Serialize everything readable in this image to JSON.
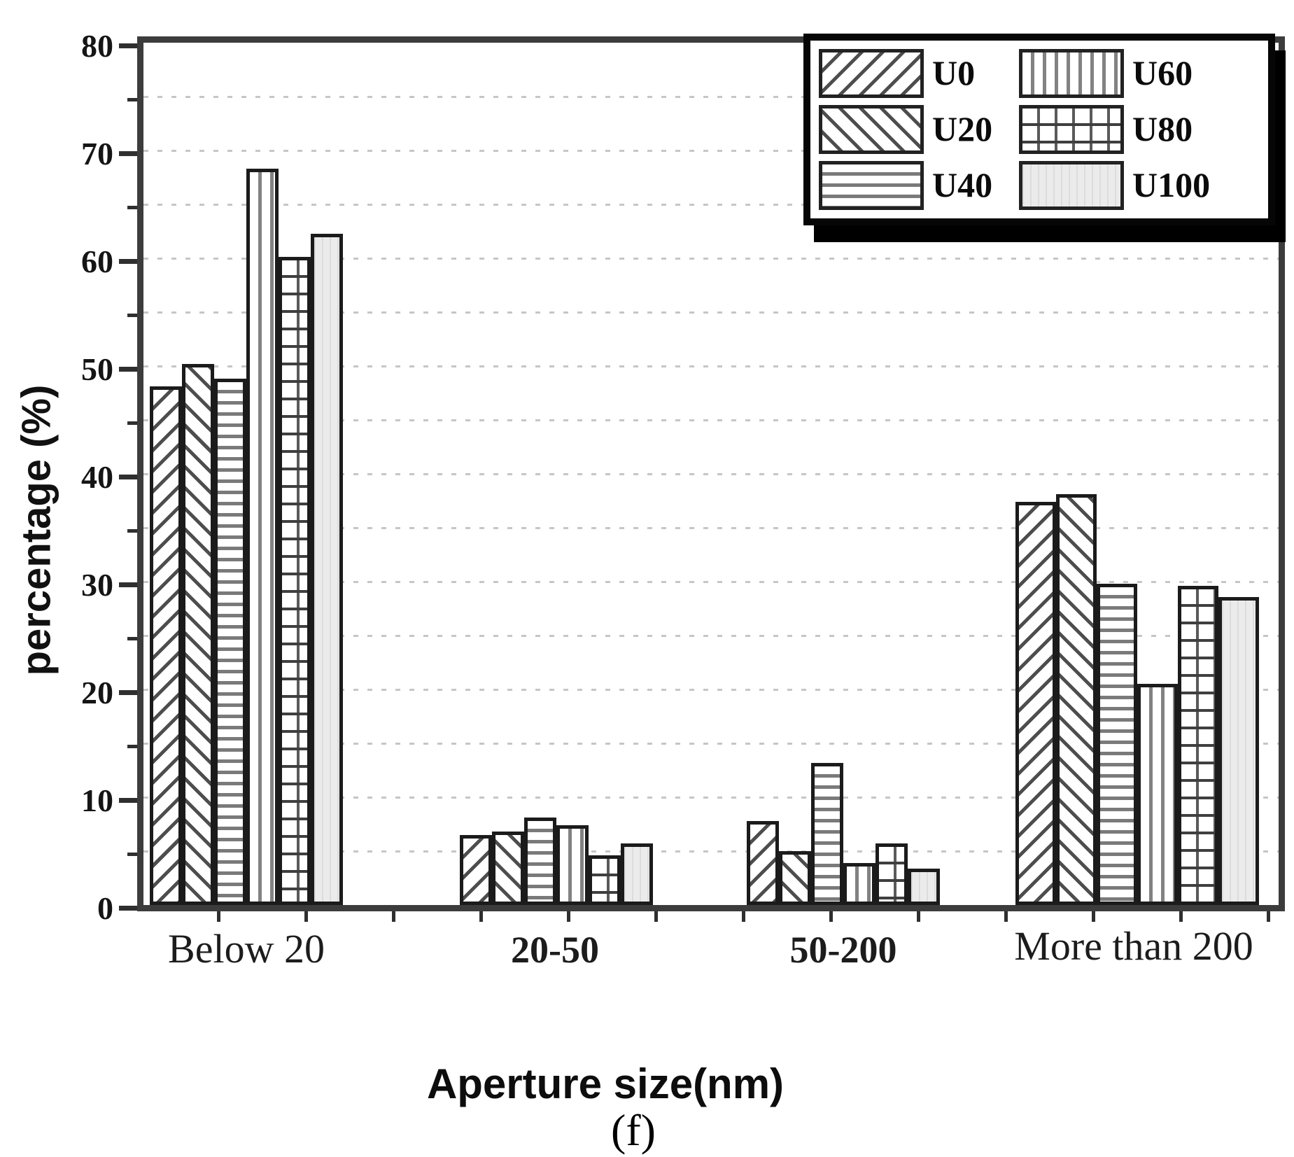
{
  "figure": {
    "caption": "(f)"
  },
  "chart_data": {
    "type": "bar",
    "title": "",
    "xlabel": "Aperture size(nm)",
    "ylabel": "percentage (%)",
    "ylim": [
      0,
      80
    ],
    "ytick_step": 10,
    "ytick_labels": [
      "0",
      "10",
      "20",
      "30",
      "40",
      "50",
      "60",
      "70",
      "80"
    ],
    "grid": true,
    "grid_step": 5,
    "legend_position": "top-right",
    "categories": [
      "Below 20",
      "20-50",
      "50-200",
      "More than 200"
    ],
    "series": [
      {
        "name": "U0",
        "pattern": "diag-up",
        "values": [
          48.1,
          6.5,
          7.8,
          37.4
        ]
      },
      {
        "name": "U20",
        "pattern": "diag-down",
        "values": [
          50.2,
          6.8,
          5.0,
          38.1
        ]
      },
      {
        "name": "U40",
        "pattern": "horizontal",
        "values": [
          48.8,
          8.1,
          13.2,
          29.8
        ]
      },
      {
        "name": "U60",
        "pattern": "vertical",
        "values": [
          68.3,
          7.4,
          3.9,
          20.5
        ]
      },
      {
        "name": "U80",
        "pattern": "grid",
        "values": [
          60.1,
          4.6,
          5.7,
          29.6
        ]
      },
      {
        "name": "U100",
        "pattern": "dotted-gray",
        "values": [
          62.3,
          5.7,
          3.4,
          28.6
        ]
      }
    ],
    "colors": {
      "ink": "#1b1b1b",
      "hatch_gray": "#4d4d4d",
      "light_fill": "#ebebeb",
      "grid_gray": "#c6c6c6"
    }
  }
}
